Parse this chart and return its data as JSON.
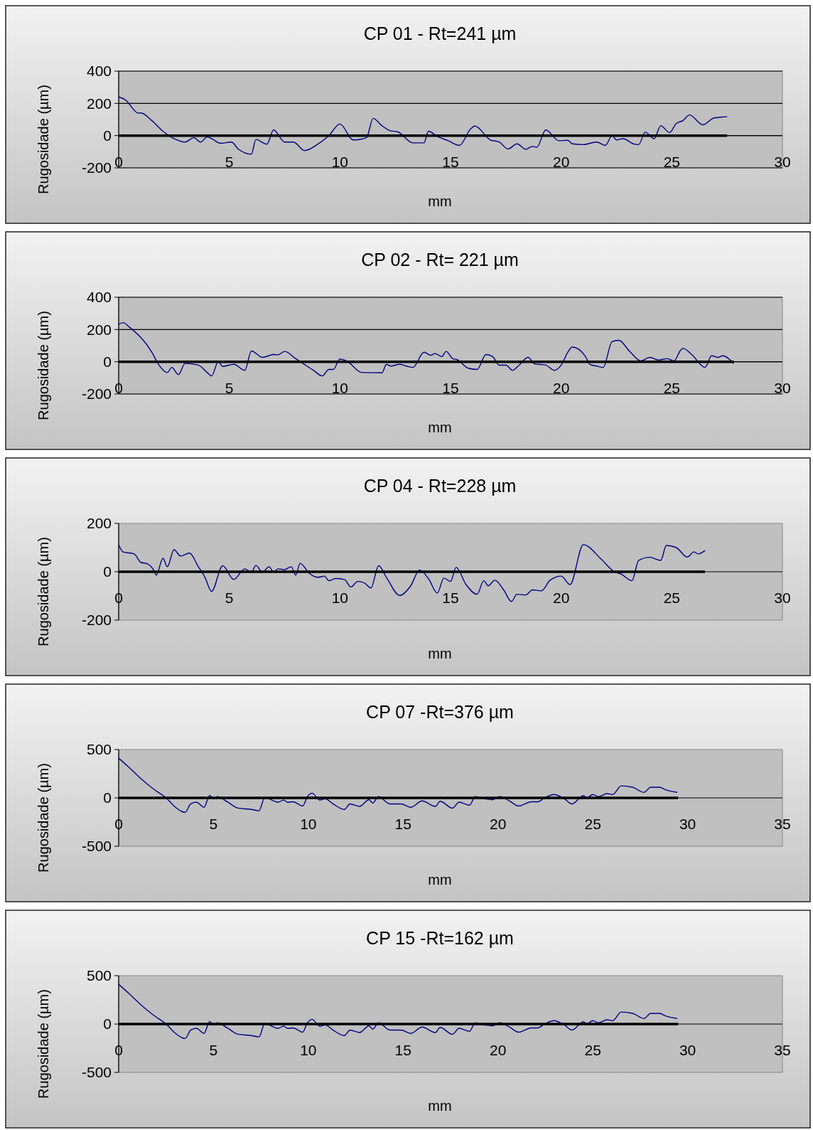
{
  "chart_data": [
    {
      "type": "line",
      "title": "CP 01 - Rt=241 µm",
      "xlabel": "mm",
      "ylabel": "Rugosidade (µm)",
      "xlim": [
        0,
        30
      ],
      "xticks": [
        0,
        5,
        10,
        15,
        20,
        25,
        30
      ],
      "ylim": [
        -200,
        400
      ],
      "yticks": [
        -200,
        0,
        200,
        400
      ],
      "grid": "y",
      "series": [
        {
          "color": "#000080",
          "x": [
            0,
            0.3,
            0.9,
            1.0,
            1.5,
            2.0,
            2.5,
            3.0,
            3.4,
            3.7,
            4.0,
            4.2,
            4.6,
            5.1,
            5.4,
            6.0,
            6.2,
            6.7,
            7.0,
            7.5,
            7.9,
            8.4,
            9.0,
            9.5,
            10.0,
            10.6,
            11.2,
            11.5,
            11.9,
            12.3,
            12.6,
            13.3,
            13.8,
            14.0,
            14.4,
            14.9,
            15.4,
            15.9,
            16.1,
            16.8,
            17.2,
            17.6,
            18.0,
            18.4,
            18.7,
            18.9,
            19.3,
            19.9,
            20.3,
            20.5,
            21.0,
            21.6,
            22.0,
            22.3,
            22.5,
            22.8,
            23.3,
            23.5,
            23.8,
            24.2,
            24.5,
            24.9,
            25.2,
            25.5,
            25.8,
            26.4,
            26.9,
            27.5
          ],
          "values": [
            240,
            222,
            139,
            141,
            93,
            27,
            -19,
            -40,
            -13,
            -40,
            -8,
            -19,
            -48,
            -40,
            -83,
            -115,
            -24,
            -53,
            35,
            -40,
            -40,
            -93,
            -53,
            0,
            72,
            -27,
            -13,
            107,
            61,
            29,
            24,
            -45,
            -45,
            27,
            -5,
            -32,
            -61,
            40,
            59,
            -27,
            -40,
            -83,
            -51,
            -85,
            -67,
            -72,
            35,
            -32,
            -29,
            -51,
            -56,
            -40,
            -61,
            0,
            -27,
            -19,
            -53,
            -56,
            21,
            -19,
            61,
            19,
            75,
            93,
            128,
            67,
            109,
            117
          ]
        },
        {
          "color": "#000000",
          "x": [
            0,
            27.5
          ],
          "values": [
            0,
            0
          ]
        }
      ]
    },
    {
      "type": "line",
      "title": "CP 02 - Rt= 221 µm",
      "xlabel": "mm",
      "ylabel": "Rugosidade (µm)",
      "xlim": [
        0,
        30
      ],
      "xticks": [
        0,
        5,
        10,
        15,
        20,
        25,
        30
      ],
      "ylim": [
        -200,
        400
      ],
      "yticks": [
        -200,
        0,
        200,
        400
      ],
      "grid": "y",
      "series": [
        {
          "color": "#000080",
          "x": [
            0,
            0.2,
            0.5,
            1.5,
            1.8,
            2.2,
            2.4,
            2.7,
            3.0,
            3.6,
            4.0,
            4.2,
            4.5,
            4.7,
            5.2,
            5.7,
            6.0,
            6.5,
            7.0,
            7.2,
            7.5,
            8.0,
            8.6,
            8.8,
            9.2,
            9.5,
            9.7,
            10.0,
            10.3,
            11.0,
            11.9,
            12.1,
            12.3,
            12.7,
            13.0,
            13.3,
            13.8,
            14.1,
            14.3,
            14.6,
            14.8,
            15.1,
            15.3,
            15.8,
            16.2,
            16.6,
            16.9,
            17.2,
            17.5,
            17.8,
            18.1,
            18.5,
            18.8,
            19.3,
            19.7,
            20.0,
            20.3,
            20.5,
            21.1,
            21.3,
            21.6,
            21.9,
            22.3,
            22.6,
            23.1,
            23.6,
            24.0,
            24.4,
            24.8,
            25.1,
            25.4,
            25.5,
            25.9,
            26.5,
            26.8,
            27.1,
            27.3,
            27.8
          ],
          "values": [
            232,
            243,
            213,
            59,
            -16,
            -67,
            -35,
            -80,
            -11,
            -21,
            -67,
            -88,
            0,
            -29,
            -16,
            -53,
            67,
            27,
            45,
            43,
            64,
            19,
            -35,
            -53,
            -88,
            -48,
            -48,
            16,
            5,
            -67,
            -69,
            -16,
            -27,
            -16,
            -27,
            -35,
            59,
            40,
            51,
            32,
            64,
            19,
            13,
            -40,
            -48,
            45,
            32,
            -21,
            -21,
            -53,
            -21,
            27,
            -13,
            -21,
            -53,
            -21,
            59,
            91,
            32,
            -16,
            -27,
            -35,
            125,
            133,
            64,
            5,
            27,
            11,
            19,
            5,
            72,
            83,
            45,
            -35,
            37,
            27,
            37,
            -11
          ]
        },
        {
          "color": "#000000",
          "x": [
            0,
            27.8
          ],
          "values": [
            0,
            0
          ]
        }
      ]
    },
    {
      "type": "line",
      "title": "CP 04 - Rt=228 µm",
      "xlabel": "mm",
      "ylabel": "Rugosidade (µm)",
      "xlim": [
        0,
        30
      ],
      "xticks": [
        0,
        5,
        10,
        15,
        20,
        25,
        30
      ],
      "ylim": [
        -200,
        200
      ],
      "yticks": [
        -200,
        0,
        200
      ],
      "series": [
        {
          "color": "#000080",
          "x": [
            0,
            0.2,
            0.7,
            1.0,
            1.3,
            1.6,
            1.7,
            2.0,
            2.2,
            2.5,
            2.8,
            3.2,
            3.6,
            3.9,
            4.2,
            4.7,
            5.2,
            5.7,
            6.0,
            6.2,
            6.5,
            6.8,
            7.0,
            7.2,
            7.5,
            7.8,
            8.0,
            8.2,
            8.6,
            9.0,
            9.3,
            9.5,
            9.8,
            10.2,
            10.5,
            10.8,
            11.1,
            11.4,
            11.75,
            12.1,
            12.7,
            13.2,
            13.6,
            14.0,
            14.4,
            14.7,
            15.0,
            15.25,
            15.7,
            16.2,
            16.5,
            16.7,
            17.0,
            17.4,
            17.75,
            18.0,
            18.4,
            18.7,
            19.1,
            19.5,
            20.0,
            20.4,
            21.0,
            21.8,
            22.4,
            22.7,
            23.2,
            23.5,
            24.0,
            24.5,
            24.75,
            25.2,
            25.7,
            26.0,
            26.2,
            26.5
          ],
          "values": [
            112,
            82,
            74,
            39,
            33,
            4,
            -14,
            56,
            21,
            91,
            65,
            77,
            21,
            -23,
            -81,
            25,
            -32,
            12,
            -2,
            26,
            -2,
            21,
            -2,
            12,
            9,
            21,
            -14,
            35,
            -5,
            -23,
            -18,
            -37,
            -28,
            -32,
            -63,
            -40,
            -46,
            -67,
            25,
            -23,
            -98,
            -58,
            7,
            -28,
            -88,
            -26,
            -40,
            18,
            -53,
            -93,
            -37,
            -58,
            -35,
            -75,
            -123,
            -93,
            -96,
            -75,
            -79,
            -35,
            -18,
            -53,
            112,
            53,
            0,
            -9,
            -37,
            47,
            60,
            47,
            109,
            100,
            61,
            82,
            74,
            88
          ]
        },
        {
          "color": "#000000",
          "x": [
            0,
            26.5
          ],
          "values": [
            0,
            0
          ]
        }
      ]
    },
    {
      "type": "line",
      "title": "CP 07 -Rt=376 µm",
      "xlabel": "mm",
      "ylabel": "Rugosidade (µm)",
      "xlim": [
        0,
        35
      ],
      "xticks": [
        0,
        5,
        10,
        15,
        20,
        25,
        30,
        35
      ],
      "ylim": [
        -500,
        500
      ],
      "yticks": [
        -500,
        0,
        500
      ],
      "series": [
        {
          "color": "#000080",
          "x": [
            0,
            0.5,
            1.1,
            1.8,
            2.5,
            3.0,
            3.5,
            3.8,
            4.1,
            4.5,
            4.8,
            5.0,
            5.2,
            5.75,
            6.3,
            7.0,
            7.4,
            7.7,
            8.4,
            8.7,
            8.9,
            9.2,
            9.7,
            9.95,
            10.2,
            10.6,
            10.9,
            11.3,
            11.9,
            12.2,
            12.7,
            13.2,
            13.4,
            13.7,
            14.3,
            14.9,
            15.4,
            16.0,
            16.7,
            16.95,
            17.6,
            17.95,
            18.5,
            18.8,
            19.3,
            19.7,
            20.1,
            20.6,
            21.1,
            21.75,
            22.1,
            22.45,
            22.95,
            23.5,
            23.9,
            24.5,
            24.7,
            25.0,
            25.3,
            25.75,
            26.05,
            26.5,
            27.1,
            27.7,
            28.05,
            28.5,
            28.9,
            29.45
          ],
          "values": [
            411,
            323,
            212,
            97,
            0,
            -97,
            -150,
            -62,
            -44,
            -97,
            27,
            -9,
            13,
            -44,
            -106,
            -119,
            -133,
            4,
            -44,
            -22,
            -44,
            -40,
            -84,
            13,
            49,
            -22,
            -9,
            -62,
            -119,
            -62,
            -88,
            -18,
            -53,
            13,
            -62,
            -62,
            -97,
            -31,
            -88,
            -35,
            -106,
            -44,
            -75,
            13,
            -9,
            -18,
            13,
            -31,
            -84,
            -40,
            -40,
            0,
            35,
            -9,
            -62,
            22,
            4,
            35,
            13,
            44,
            35,
            124,
            110,
            57,
            110,
            110,
            80,
            57
          ]
        },
        {
          "color": "#000000",
          "x": [
            0,
            29.5
          ],
          "values": [
            0,
            0
          ]
        }
      ]
    },
    {
      "type": "line",
      "title": "CP 15 -Rt=162 µm",
      "xlabel": "mm",
      "ylabel": "Rugosidade (µm)",
      "xlim": [
        0,
        35
      ],
      "xticks": [
        0,
        5,
        10,
        15,
        20,
        25,
        30,
        35
      ],
      "ylim": [
        -500,
        500
      ],
      "yticks": [
        -500,
        0,
        500
      ],
      "series": [
        {
          "color": "#000080",
          "x": [
            0,
            0.5,
            1.1,
            1.8,
            2.5,
            3.0,
            3.5,
            3.8,
            4.1,
            4.5,
            4.8,
            5.0,
            5.2,
            5.75,
            6.3,
            7.0,
            7.4,
            7.7,
            8.4,
            8.7,
            8.9,
            9.2,
            9.7,
            9.95,
            10.2,
            10.6,
            10.9,
            11.3,
            11.9,
            12.2,
            12.7,
            13.2,
            13.4,
            13.7,
            14.3,
            14.9,
            15.4,
            16.0,
            16.7,
            16.95,
            17.6,
            17.95,
            18.5,
            18.8,
            19.3,
            19.7,
            20.1,
            20.6,
            21.1,
            21.75,
            22.1,
            22.45,
            22.95,
            23.5,
            23.9,
            24.5,
            24.7,
            25.0,
            25.3,
            25.75,
            26.05,
            26.5,
            27.1,
            27.7,
            28.05,
            28.5,
            28.9,
            29.45
          ],
          "values": [
            411,
            323,
            212,
            97,
            0,
            -97,
            -150,
            -62,
            -44,
            -97,
            27,
            -9,
            13,
            -44,
            -106,
            -119,
            -133,
            4,
            -44,
            -22,
            -44,
            -40,
            -84,
            13,
            49,
            -22,
            -9,
            -62,
            -119,
            -62,
            -88,
            -18,
            -53,
            13,
            -62,
            -62,
            -97,
            -31,
            -88,
            -35,
            -106,
            -44,
            -75,
            13,
            -9,
            -18,
            13,
            -31,
            -84,
            -40,
            -40,
            0,
            35,
            -9,
            -62,
            22,
            4,
            35,
            13,
            44,
            35,
            124,
            110,
            57,
            110,
            110,
            80,
            57
          ]
        },
        {
          "color": "#000000",
          "x": [
            0,
            29.5
          ],
          "values": [
            0,
            0
          ]
        }
      ]
    }
  ]
}
